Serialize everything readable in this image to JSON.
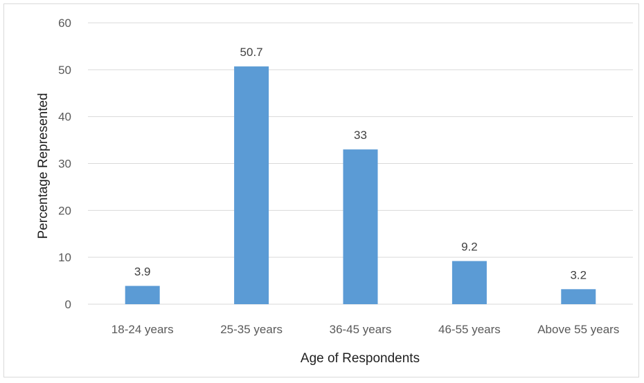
{
  "chart_data": {
    "type": "bar",
    "title": "",
    "xlabel": "Age of Respondents",
    "ylabel": "Percentage Represented",
    "categories": [
      "18-24 years",
      "25-35 years",
      "36-45 years",
      "46-55 years",
      "Above 55 years"
    ],
    "values": [
      3.9,
      50.7,
      33,
      9.2,
      3.2
    ],
    "value_labels": [
      "3.9",
      "50.7",
      "33",
      "9.2",
      "3.2"
    ],
    "ylim": [
      0,
      60
    ],
    "yticks": [
      "0",
      "10",
      "20",
      "30",
      "40",
      "50",
      "60"
    ],
    "grid": true,
    "legend": "none",
    "bar_color": "#5b9bd5",
    "grid_color": "#d9d9d9"
  }
}
